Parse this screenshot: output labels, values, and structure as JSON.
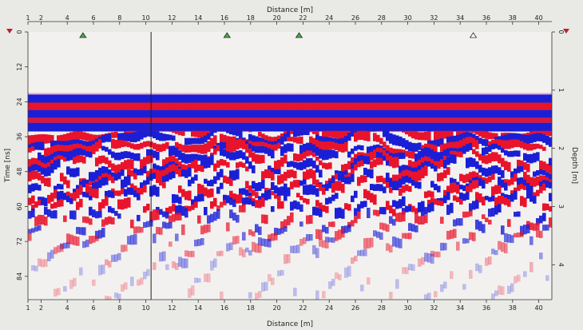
{
  "chart_data": {
    "type": "heatmap",
    "title": "",
    "xlabel": "Distance [m]",
    "ylabel": "Time [ns]",
    "y2label": "Depth [m]",
    "xlim": [
      1,
      41
    ],
    "ylim": [
      0,
      92
    ],
    "y2lim": [
      0,
      4.6
    ],
    "x_ticks": [
      1,
      2,
      4,
      6,
      8,
      10,
      12,
      14,
      16,
      18,
      20,
      22,
      24,
      26,
      28,
      30,
      32,
      34,
      36,
      38,
      40
    ],
    "y_ticks": [
      0,
      12,
      24,
      36,
      48,
      60,
      72,
      84
    ],
    "y2_ticks": [
      0,
      1,
      2,
      3,
      4
    ],
    "markers": [
      {
        "x": 5.2,
        "color": "#3fb43f"
      },
      {
        "x": 16.2,
        "color": "#3fb43f"
      },
      {
        "x": 21.7,
        "color": "#3fb43f"
      },
      {
        "x": 35.0,
        "color": "#ffffff"
      }
    ],
    "cursor_x": 10.4,
    "time_zero_marker_y": 0,
    "colors": {
      "positive": "#e8142b",
      "negative": "#1a1fd6",
      "background": "#f3f1ef"
    }
  }
}
